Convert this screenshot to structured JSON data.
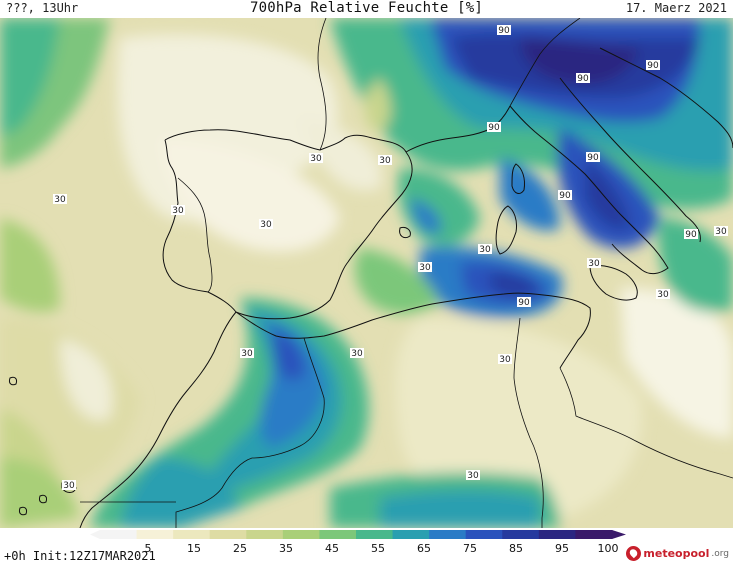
{
  "header": {
    "left_text": "???, 13Uhr",
    "title": "700hPa Relative Feuchte [%]",
    "date": "17. Maerz 2021"
  },
  "footer": {
    "init_text": "+0h  Init:12Z17MAR2021",
    "brand_name": "meteopool",
    "brand_suffix": ".org"
  },
  "colorbar": {
    "labels": [
      "5",
      "15",
      "25",
      "35",
      "45",
      "55",
      "65",
      "75",
      "85",
      "95",
      "100"
    ],
    "colors": [
      "#f4f4f4",
      "#f6f1d8",
      "#ece8be",
      "#dedca4",
      "#c9d58d",
      "#a9cf78",
      "#7cc77a",
      "#48b88c",
      "#2a9fb0",
      "#2a7bc6",
      "#2a52bc",
      "#263a9e",
      "#2b2681",
      "#3a1a6a"
    ]
  },
  "contour_labels": [
    "90",
    "90",
    "90",
    "90",
    "90",
    "90",
    "90",
    "90",
    "30",
    "30",
    "30",
    "30",
    "30",
    "30",
    "30",
    "30",
    "30",
    "30",
    "30",
    "30",
    "30",
    "30",
    "30"
  ],
  "colors": {
    "coast": "#111111",
    "accent": "#c8202c"
  }
}
